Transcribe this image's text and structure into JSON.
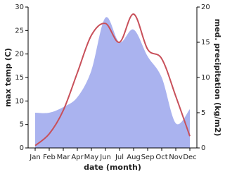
{
  "chart_data": {
    "type": "line",
    "x_label": "date (month)",
    "y_label": "max temp (C)",
    "y2_label": "med. precipitation (kg/m2)",
    "categories": [
      "Jan",
      "Feb",
      "Mar",
      "Apr",
      "May",
      "Jun",
      "Jul",
      "Aug",
      "Sep",
      "Oct",
      "Nov",
      "Dec"
    ],
    "series": [
      {
        "name": "med. precipitation (kg/m2)",
        "type": "area",
        "axis": "y2",
        "color": "#aab3ef",
        "values": [
          5,
          5,
          5.8,
          7.2,
          11,
          18.5,
          15,
          16.8,
          13,
          10,
          3.5,
          5.5
        ]
      },
      {
        "name": "max temp (C)",
        "type": "line",
        "color": "#c8505a",
        "values": [
          0.5,
          3,
          8,
          16,
          24,
          26.5,
          22.5,
          28.5,
          21,
          19,
          11,
          2.5
        ]
      }
    ],
    "ylim": [
      0,
      30
    ],
    "yticks": [
      0,
      5,
      10,
      15,
      20,
      25,
      30
    ],
    "y2lim": [
      0,
      20
    ],
    "y2ticks": [
      0,
      5,
      10,
      15,
      20
    ]
  }
}
